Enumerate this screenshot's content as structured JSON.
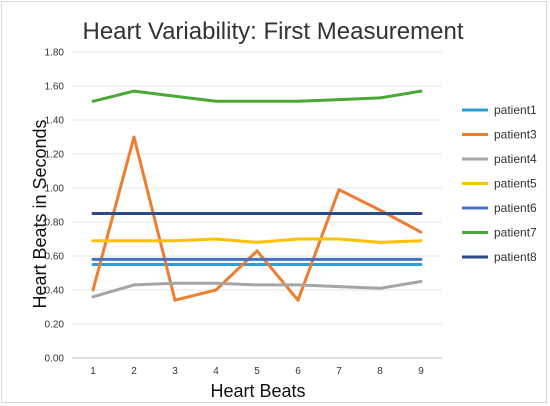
{
  "chart_data": {
    "type": "line",
    "title": "Heart Variability: First Measurement",
    "xlabel": "Heart Beats",
    "ylabel": "Heart Beats in Seconds",
    "x": [
      1,
      2,
      3,
      4,
      5,
      6,
      7,
      8,
      9
    ],
    "x_tick_labels": [
      "1",
      "2",
      "3",
      "4",
      "5",
      "6",
      "7",
      "8",
      "9"
    ],
    "ylim": [
      0,
      1.8
    ],
    "y_ticks": [
      0,
      0.2,
      0.4,
      0.6,
      0.8,
      1.0,
      1.2,
      1.4,
      1.6,
      1.8
    ],
    "y_tick_labels": [
      "0.00",
      "0.20",
      "0.40",
      "0.60",
      "0.80",
      "1.00",
      "1.20",
      "1.40",
      "1.60",
      "1.80"
    ],
    "grid": true,
    "legend_position": "right",
    "series": [
      {
        "name": "patient1",
        "color": "#2e9fd6",
        "values": [
          0.55,
          0.55,
          0.55,
          0.55,
          0.55,
          0.55,
          0.55,
          0.55,
          0.55
        ]
      },
      {
        "name": "patient3",
        "color": "#ed7d31",
        "values": [
          0.4,
          1.3,
          0.34,
          0.4,
          0.63,
          0.34,
          0.99,
          0.87,
          0.74
        ]
      },
      {
        "name": "patient4",
        "color": "#a5a5a5",
        "values": [
          0.36,
          0.43,
          0.44,
          0.44,
          0.43,
          0.43,
          0.42,
          0.41,
          0.45
        ]
      },
      {
        "name": "patient5",
        "color": "#ffc000",
        "values": [
          0.69,
          0.69,
          0.69,
          0.7,
          0.68,
          0.7,
          0.7,
          0.68,
          0.69
        ]
      },
      {
        "name": "patient6",
        "color": "#4472c4",
        "values": [
          0.58,
          0.58,
          0.58,
          0.58,
          0.58,
          0.58,
          0.58,
          0.58,
          0.58
        ]
      },
      {
        "name": "patient7",
        "color": "#4aa838",
        "values": [
          1.51,
          1.57,
          1.54,
          1.51,
          1.51,
          1.51,
          1.52,
          1.53,
          1.57
        ]
      },
      {
        "name": "patient8",
        "color": "#2a4a8a",
        "values": [
          0.85,
          0.85,
          0.85,
          0.85,
          0.85,
          0.85,
          0.85,
          0.85,
          0.85
        ]
      }
    ]
  }
}
